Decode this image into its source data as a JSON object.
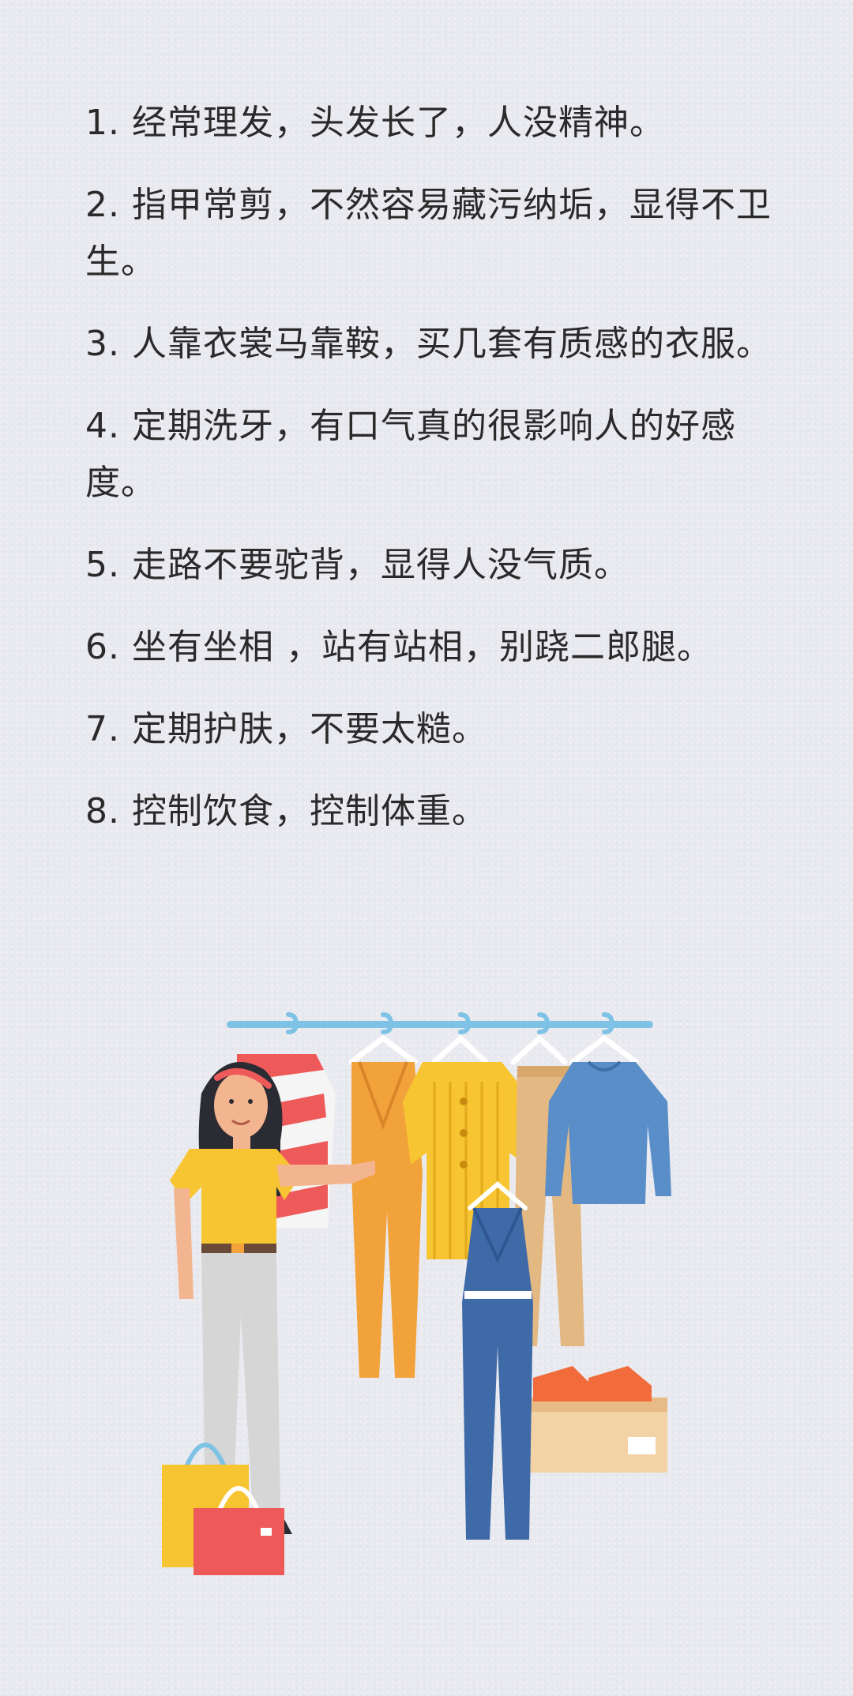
{
  "tips": [
    "1. 经常理发，头发长了，人没精神。",
    "2. 指甲常剪，不然容易藏污纳垢，显得不卫生。",
    "3. 人靠衣裳马靠鞍，买几套有质感的衣服。",
    "4. 定期洗牙，有口气真的很影响人的好感度。",
    "5. 走路不要驼背，显得人没气质。",
    "6. 坐有坐相 ，站有站相，别跷二郎腿。",
    "7. 定期护肤，不要太糙。",
    "8. 控制饮食，控制体重。"
  ],
  "illustration": {
    "icon": "woman-choosing-clothes-icon",
    "colors": {
      "rack": "#7ec3e6",
      "yellow_top": "#f7c531",
      "blue_sweater": "#5a8ec8",
      "denim": "#3f6aa8",
      "orange": "#f2a23a",
      "red_bag": "#ee5a5a",
      "box": "#f3d2a6"
    }
  }
}
